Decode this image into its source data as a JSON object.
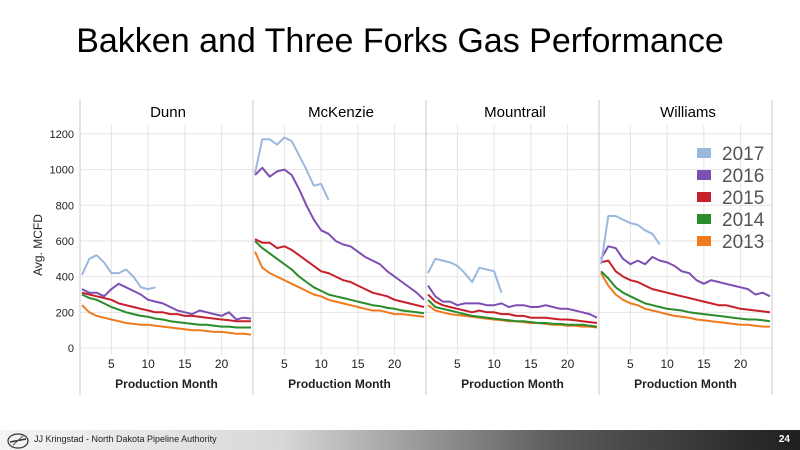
{
  "slide": {
    "title": "Bakken and Three Forks Gas Performance",
    "footer_text": "JJ Kringstad - North Dakota Pipeline Authority",
    "page_number": "24"
  },
  "chart_data": {
    "type": "line",
    "ylabel": "Avg. MCFD",
    "xlabel": "Production Month",
    "ylim": [
      0,
      1250
    ],
    "xlim": [
      1,
      24
    ],
    "y_ticks": [
      0,
      200,
      400,
      600,
      800,
      1000,
      1200
    ],
    "x_ticks": [
      5,
      10,
      15,
      20
    ],
    "grid": true,
    "legend": {
      "placement": "top-right",
      "entries": [
        {
          "label": "2017",
          "color": "#9ab8de"
        },
        {
          "label": "2016",
          "color": "#7e4fb2"
        },
        {
          "label": "2015",
          "color": "#c8202a"
        },
        {
          "label": "2014",
          "color": "#2a8c2a"
        },
        {
          "label": "2013",
          "color": "#f07a1e"
        }
      ]
    },
    "panels": [
      {
        "title": "Dunn",
        "series": [
          {
            "name": "2017",
            "color": "#9ab8de",
            "values": [
              410,
              500,
              520,
              480,
              420,
              420,
              440,
              400,
              340,
              330,
              340
            ]
          },
          {
            "name": "2016",
            "color": "#7e4fb2",
            "values": [
              330,
              310,
              310,
              290,
              330,
              360,
              340,
              320,
              300,
              270,
              260,
              250,
              230,
              210,
              200,
              190,
              210,
              200,
              190,
              180,
              200,
              160,
              170,
              165
            ]
          },
          {
            "name": "2015",
            "color": "#c8202a",
            "values": [
              310,
              300,
              290,
              280,
              270,
              250,
              240,
              230,
              220,
              210,
              200,
              200,
              190,
              190,
              180,
              180,
              175,
              170,
              165,
              160,
              155,
              150,
              150,
              150
            ]
          },
          {
            "name": "2014",
            "color": "#2a8c2a",
            "values": [
              300,
              280,
              270,
              250,
              230,
              215,
              200,
              190,
              180,
              175,
              165,
              160,
              150,
              145,
              140,
              135,
              130,
              130,
              125,
              120,
              120,
              115,
              115,
              115
            ]
          },
          {
            "name": "2013",
            "color": "#f07a1e",
            "values": [
              240,
              200,
              180,
              170,
              160,
              150,
              140,
              135,
              130,
              130,
              125,
              120,
              115,
              110,
              105,
              100,
              100,
              95,
              90,
              90,
              85,
              80,
              80,
              75
            ]
          }
        ]
      },
      {
        "title": "McKenzie",
        "series": [
          {
            "name": "2017",
            "color": "#9ab8de",
            "values": [
              980,
              1170,
              1170,
              1140,
              1180,
              1160,
              1080,
              1000,
              910,
              920,
              830
            ]
          },
          {
            "name": "2016",
            "color": "#7e4fb2",
            "values": [
              970,
              1010,
              960,
              990,
              1000,
              970,
              890,
              800,
              720,
              660,
              640,
              600,
              580,
              570,
              540,
              510,
              490,
              470,
              430,
              400,
              370,
              340,
              310,
              270
            ]
          },
          {
            "name": "2015",
            "color": "#c8202a",
            "values": [
              610,
              590,
              590,
              560,
              570,
              550,
              520,
              490,
              460,
              430,
              420,
              400,
              380,
              370,
              350,
              330,
              310,
              300,
              290,
              270,
              260,
              250,
              240,
              230
            ]
          },
          {
            "name": "2014",
            "color": "#2a8c2a",
            "values": [
              600,
              560,
              530,
              500,
              470,
              440,
              400,
              370,
              340,
              320,
              300,
              290,
              280,
              270,
              260,
              250,
              240,
              235,
              225,
              220,
              210,
              205,
              200,
              195
            ]
          },
          {
            "name": "2013",
            "color": "#f07a1e",
            "values": [
              540,
              450,
              420,
              400,
              380,
              360,
              340,
              320,
              300,
              290,
              270,
              260,
              250,
              240,
              230,
              220,
              210,
              210,
              200,
              190,
              190,
              185,
              180,
              175
            ]
          }
        ]
      },
      {
        "title": "Mountrail",
        "series": [
          {
            "name": "2017",
            "color": "#9ab8de",
            "values": [
              420,
              500,
              490,
              480,
              460,
              420,
              370,
              450,
              440,
              430,
              310
            ]
          },
          {
            "name": "2016",
            "color": "#7e4fb2",
            "values": [
              350,
              290,
              260,
              260,
              240,
              250,
              250,
              250,
              240,
              240,
              250,
              230,
              240,
              240,
              230,
              230,
              240,
              230,
              220,
              220,
              210,
              200,
              190,
              170
            ]
          },
          {
            "name": "2015",
            "color": "#c8202a",
            "values": [
              300,
              260,
              240,
              230,
              220,
              210,
              200,
              210,
              200,
              200,
              190,
              190,
              180,
              180,
              170,
              170,
              170,
              165,
              160,
              160,
              155,
              150,
              145,
              140
            ]
          },
          {
            "name": "2014",
            "color": "#2a8c2a",
            "values": [
              270,
              230,
              220,
              210,
              200,
              190,
              180,
              175,
              170,
              165,
              160,
              155,
              150,
              150,
              145,
              140,
              140,
              135,
              135,
              130,
              130,
              130,
              125,
              120
            ]
          },
          {
            "name": "2013",
            "color": "#f07a1e",
            "values": [
              240,
              210,
              200,
              190,
              185,
              180,
              175,
              170,
              165,
              160,
              155,
              150,
              150,
              145,
              140,
              140,
              135,
              130,
              130,
              125,
              125,
              120,
              120,
              115
            ]
          }
        ]
      },
      {
        "title": "Williams",
        "series": [
          {
            "name": "2017",
            "color": "#9ab8de",
            "values": [
              470,
              740,
              740,
              720,
              700,
              690,
              660,
              640,
              580
            ]
          },
          {
            "name": "2016",
            "color": "#7e4fb2",
            "values": [
              500,
              570,
              560,
              500,
              470,
              490,
              470,
              510,
              490,
              480,
              460,
              430,
              420,
              380,
              360,
              380,
              370,
              360,
              350,
              340,
              330,
              300,
              310,
              290
            ]
          },
          {
            "name": "2015",
            "color": "#c8202a",
            "values": [
              480,
              490,
              430,
              400,
              380,
              370,
              350,
              330,
              320,
              310,
              300,
              290,
              280,
              270,
              260,
              250,
              240,
              240,
              230,
              220,
              215,
              210,
              205,
              200
            ]
          },
          {
            "name": "2014",
            "color": "#2a8c2a",
            "values": [
              430,
              390,
              340,
              310,
              290,
              270,
              250,
              240,
              230,
              220,
              215,
              210,
              200,
              195,
              190,
              185,
              180,
              175,
              170,
              165,
              160,
              160,
              155,
              150
            ]
          },
          {
            "name": "2013",
            "color": "#f07a1e",
            "values": [
              420,
              350,
              300,
              270,
              250,
              240,
              220,
              210,
              200,
              190,
              180,
              175,
              170,
              160,
              155,
              150,
              145,
              140,
              135,
              130,
              130,
              125,
              120,
              120
            ]
          }
        ]
      }
    ]
  }
}
